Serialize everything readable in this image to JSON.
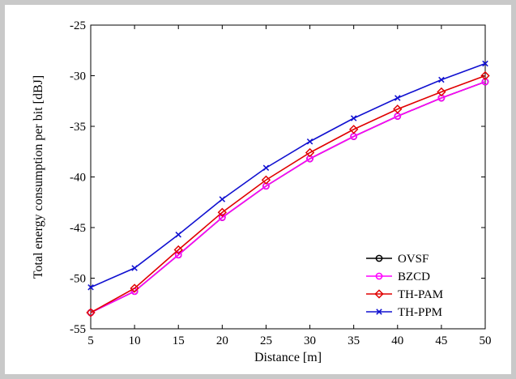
{
  "chart_data": {
    "type": "line",
    "xlabel": "Distance [m]",
    "ylabel": "Total energy consumption per bit [dBJ]",
    "x": [
      5,
      10,
      15,
      20,
      25,
      30,
      35,
      40,
      45,
      50
    ],
    "xlim": [
      5,
      50
    ],
    "ylim": [
      -55,
      -25
    ],
    "xticks": [
      5,
      10,
      15,
      20,
      25,
      30,
      35,
      40,
      45,
      50
    ],
    "yticks": [
      -55,
      -50,
      -45,
      -40,
      -35,
      -30,
      -25
    ],
    "grid": false,
    "legend_position": "bottom-right",
    "series": [
      {
        "name": "OVSF",
        "color": "#000000",
        "marker": "circle",
        "values": [
          -53.4,
          -51.3,
          -47.7,
          -44.0,
          -40.9,
          -38.2,
          -36.0,
          -34.0,
          -32.2,
          -30.6
        ]
      },
      {
        "name": "BZCD",
        "color": "#ff00ff",
        "marker": "circle",
        "values": [
          -53.4,
          -51.3,
          -47.7,
          -44.0,
          -40.9,
          -38.2,
          -36.0,
          -34.0,
          -32.2,
          -30.6
        ]
      },
      {
        "name": "TH-PAM",
        "color": "#e00000",
        "marker": "diamond",
        "values": [
          -53.4,
          -51.0,
          -47.2,
          -43.5,
          -40.3,
          -37.6,
          -35.3,
          -33.3,
          -31.6,
          -30.0
        ]
      },
      {
        "name": "TH-PPM",
        "color": "#1010d0",
        "marker": "x",
        "values": [
          -50.9,
          -49.0,
          -45.7,
          -42.2,
          -39.1,
          -36.5,
          -34.2,
          -32.2,
          -30.4,
          -28.8
        ]
      }
    ]
  }
}
